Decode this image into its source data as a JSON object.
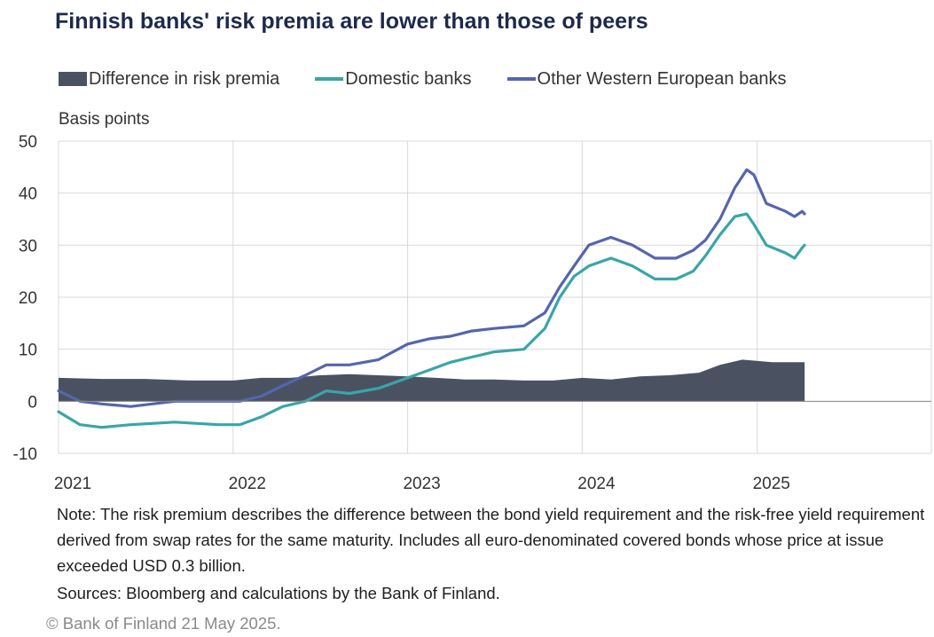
{
  "title": "Finnish banks' risk premia are lower than those of peers",
  "unit_label": "Basis points",
  "note": "Note: The risk premium describes the difference between the bond yield requirement and the risk-free yield requirement derived from swap rates for the same maturity. Includes all euro-denominated covered bonds whose price at issue exceeded USD 0.3 billion.",
  "sources": "Sources: Bloomberg and calculations by the Bank of Finland.",
  "copyright": "© Bank of Finland 21 May 2025.",
  "colors": {
    "difference": "#4a5262",
    "domestic": "#3aa5a8",
    "other": "#5565ad",
    "grid": "#d9d9d9"
  },
  "chart_data": {
    "type": "line",
    "x_axis": {
      "ticks": [
        "2021",
        "2022",
        "2023",
        "2024",
        "2025"
      ],
      "range": [
        "2021-01-01",
        "2025-12-31"
      ]
    },
    "y_axis": {
      "ticks": [
        50,
        40,
        30,
        20,
        10,
        0,
        -10
      ],
      "ylim": [
        -10,
        50
      ]
    },
    "grid": true,
    "legend_position": "top",
    "series": [
      {
        "name": "Difference in risk premia",
        "kind": "bar",
        "color": "#4a5262",
        "points": [
          [
            "2021-01-01",
            4.5
          ],
          [
            "2021-04-01",
            4.3
          ],
          [
            "2021-07-01",
            4.3
          ],
          [
            "2021-10-01",
            4.0
          ],
          [
            "2022-01-01",
            4.0
          ],
          [
            "2022-03-01",
            4.5
          ],
          [
            "2022-05-01",
            4.5
          ],
          [
            "2022-07-01",
            5.0
          ],
          [
            "2022-09-01",
            5.2
          ],
          [
            "2022-11-01",
            5.0
          ],
          [
            "2023-01-01",
            4.8
          ],
          [
            "2023-03-01",
            4.5
          ],
          [
            "2023-05-01",
            4.2
          ],
          [
            "2023-07-01",
            4.2
          ],
          [
            "2023-09-01",
            4.0
          ],
          [
            "2023-11-01",
            4.0
          ],
          [
            "2024-01-01",
            4.5
          ],
          [
            "2024-03-01",
            4.2
          ],
          [
            "2024-05-01",
            4.8
          ],
          [
            "2024-07-01",
            5.0
          ],
          [
            "2024-09-01",
            5.5
          ],
          [
            "2024-10-15",
            7.0
          ],
          [
            "2024-12-01",
            8.0
          ],
          [
            "2025-02-01",
            7.5
          ],
          [
            "2025-04-10",
            7.5
          ]
        ]
      },
      {
        "name": "Domestic banks",
        "kind": "line",
        "color": "#3aa5a8",
        "points": [
          [
            "2021-01-01",
            -2.0
          ],
          [
            "2021-02-15",
            -4.5
          ],
          [
            "2021-04-01",
            -5.0
          ],
          [
            "2021-06-01",
            -4.5
          ],
          [
            "2021-09-01",
            -4.0
          ],
          [
            "2021-12-01",
            -4.5
          ],
          [
            "2022-01-15",
            -4.5
          ],
          [
            "2022-03-01",
            -3.0
          ],
          [
            "2022-04-15",
            -1.0
          ],
          [
            "2022-06-01",
            0.0
          ],
          [
            "2022-07-15",
            2.0
          ],
          [
            "2022-09-01",
            1.5
          ],
          [
            "2022-11-01",
            2.5
          ],
          [
            "2023-01-01",
            4.5
          ],
          [
            "2023-02-15",
            6.0
          ],
          [
            "2023-04-01",
            7.5
          ],
          [
            "2023-05-15",
            8.5
          ],
          [
            "2023-07-01",
            9.5
          ],
          [
            "2023-09-01",
            10.0
          ],
          [
            "2023-10-15",
            14.0
          ],
          [
            "2023-11-15",
            20.0
          ],
          [
            "2023-12-15",
            24.0
          ],
          [
            "2024-01-15",
            26.0
          ],
          [
            "2024-03-01",
            27.5
          ],
          [
            "2024-04-15",
            26.0
          ],
          [
            "2024-06-01",
            23.5
          ],
          [
            "2024-07-15",
            23.5
          ],
          [
            "2024-08-20",
            25.0
          ],
          [
            "2024-09-15",
            28.0
          ],
          [
            "2024-10-15",
            32.0
          ],
          [
            "2024-11-15",
            35.5
          ],
          [
            "2024-12-10",
            36.0
          ],
          [
            "2024-12-25",
            34.0
          ],
          [
            "2025-01-20",
            30.0
          ],
          [
            "2025-03-01",
            28.5
          ],
          [
            "2025-03-20",
            27.5
          ],
          [
            "2025-04-05",
            29.5
          ],
          [
            "2025-04-10",
            30.0
          ]
        ]
      },
      {
        "name": "Other Western European banks",
        "kind": "line",
        "color": "#5565ad",
        "points": [
          [
            "2021-01-01",
            2.0
          ],
          [
            "2021-02-15",
            0.0
          ],
          [
            "2021-04-01",
            -0.5
          ],
          [
            "2021-06-01",
            -1.0
          ],
          [
            "2021-09-01",
            0.0
          ],
          [
            "2021-12-01",
            0.0
          ],
          [
            "2022-01-15",
            0.0
          ],
          [
            "2022-03-01",
            1.0
          ],
          [
            "2022-04-15",
            3.0
          ],
          [
            "2022-06-01",
            5.0
          ],
          [
            "2022-07-15",
            7.0
          ],
          [
            "2022-09-01",
            7.0
          ],
          [
            "2022-11-01",
            8.0
          ],
          [
            "2023-01-01",
            11.0
          ],
          [
            "2023-02-15",
            12.0
          ],
          [
            "2023-04-01",
            12.5
          ],
          [
            "2023-05-15",
            13.5
          ],
          [
            "2023-07-01",
            14.0
          ],
          [
            "2023-09-01",
            14.5
          ],
          [
            "2023-10-15",
            17.0
          ],
          [
            "2023-11-15",
            22.0
          ],
          [
            "2023-12-15",
            26.0
          ],
          [
            "2024-01-15",
            30.0
          ],
          [
            "2024-03-01",
            31.5
          ],
          [
            "2024-04-15",
            30.0
          ],
          [
            "2024-06-01",
            27.5
          ],
          [
            "2024-07-15",
            27.5
          ],
          [
            "2024-08-20",
            29.0
          ],
          [
            "2024-09-15",
            31.0
          ],
          [
            "2024-10-15",
            35.0
          ],
          [
            "2024-11-15",
            41.0
          ],
          [
            "2024-12-10",
            44.5
          ],
          [
            "2024-12-25",
            43.5
          ],
          [
            "2025-01-20",
            38.0
          ],
          [
            "2025-03-01",
            36.5
          ],
          [
            "2025-03-20",
            35.5
          ],
          [
            "2025-04-05",
            36.5
          ],
          [
            "2025-04-10",
            36.0
          ]
        ]
      }
    ]
  }
}
